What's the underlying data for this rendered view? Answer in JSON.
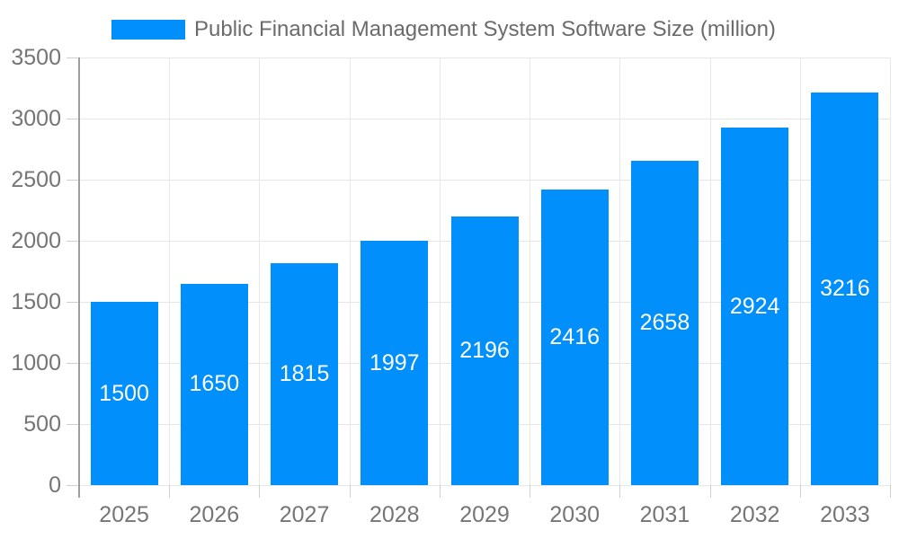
{
  "legend": {
    "label": "Public Financial Management System Software Size (million)"
  },
  "chart_data": {
    "type": "bar",
    "title": "Public Financial Management System Software Size (million)",
    "categories": [
      "2025",
      "2026",
      "2027",
      "2028",
      "2029",
      "2030",
      "2031",
      "2032",
      "2033"
    ],
    "values": [
      1500,
      1650,
      1815,
      1997,
      2196,
      2416,
      2658,
      2924,
      3216
    ],
    "series_name": "Public Financial Management System Software Size (million)",
    "xlabel": "",
    "ylabel": "",
    "ylim": [
      0,
      3500
    ],
    "y_ticks": [
      0,
      500,
      1000,
      1500,
      2000,
      2500,
      3000,
      3500
    ],
    "grid": true,
    "legend_position": "top",
    "value_labels": "inside-center",
    "colors": {
      "bar": "#008FFB",
      "value_label": "#ffffff",
      "axis_label": "#757575",
      "title_text": "#6b6b6b",
      "gridline": "#e6e6e6",
      "axis_line": "#9e9e9e"
    }
  }
}
